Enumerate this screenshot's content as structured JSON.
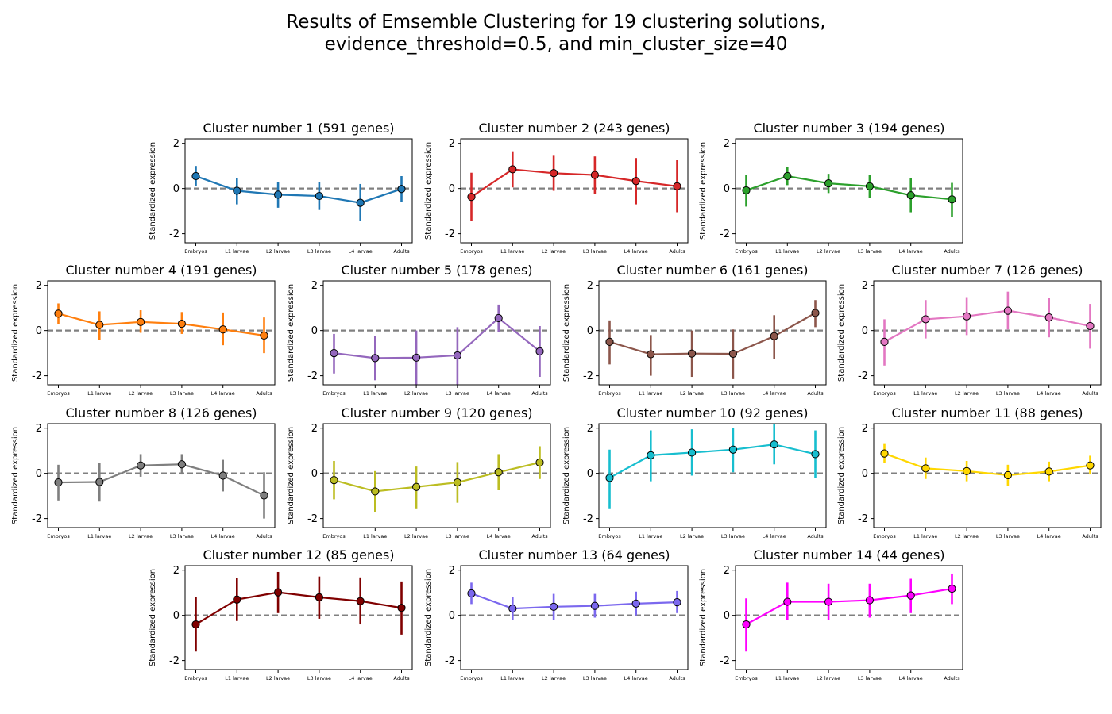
{
  "figure": {
    "title_line1": "Results of Emsemble Clustering for 19 clustering solutions,",
    "title_line2": "evidence_threshold=0.5, and min_cluster_size=40"
  },
  "chart_data": [
    {
      "type": "line",
      "title": "Cluster number 1 (591 genes)",
      "ylabel": "Standardized expression",
      "xlabel": "",
      "categories": [
        "Embryos",
        "L1 larvae",
        "L2 larvae",
        "L3 larvae",
        "L4 larvae",
        "Adults"
      ],
      "ylim": [
        -2.4,
        2.2
      ],
      "yticks": [
        -2,
        0,
        2
      ],
      "color": "#1f77b4",
      "values": [
        0.55,
        -0.1,
        -0.27,
        -0.33,
        -0.63,
        -0.02
      ],
      "err_low": [
        0.1,
        -0.7,
        -0.85,
        -0.95,
        -1.45,
        -0.6
      ],
      "err_high": [
        1.0,
        0.45,
        0.3,
        0.3,
        0.2,
        0.55
      ],
      "reference_line": 0
    },
    {
      "type": "line",
      "title": "Cluster number 2 (243 genes)",
      "ylabel": "Standardized expression",
      "xlabel": "",
      "categories": [
        "Embryos",
        "L1 larvae",
        "L2 larvae",
        "L3 larvae",
        "L4 larvae",
        "Adults"
      ],
      "ylim": [
        -2.4,
        2.2
      ],
      "yticks": [
        -2,
        0,
        2
      ],
      "color": "#d62728",
      "values": [
        -0.37,
        0.85,
        0.68,
        0.6,
        0.33,
        0.1
      ],
      "err_low": [
        -1.45,
        0.05,
        -0.1,
        -0.25,
        -0.7,
        -1.05
      ],
      "err_high": [
        0.7,
        1.65,
        1.45,
        1.42,
        1.35,
        1.25
      ],
      "reference_line": 0
    },
    {
      "type": "line",
      "title": "Cluster number 3 (194 genes)",
      "ylabel": "Standardized expression",
      "xlabel": "",
      "categories": [
        "Embryos",
        "L1 larvae",
        "L2 larvae",
        "L3 larvae",
        "L4 larvae",
        "Adults"
      ],
      "ylim": [
        -2.4,
        2.2
      ],
      "yticks": [
        -2,
        0,
        2
      ],
      "color": "#2ca02c",
      "values": [
        -0.08,
        0.55,
        0.23,
        0.1,
        -0.3,
        -0.48
      ],
      "err_low": [
        -0.8,
        0.15,
        -0.2,
        -0.4,
        -1.05,
        -1.25
      ],
      "err_high": [
        0.6,
        0.95,
        0.65,
        0.6,
        0.45,
        0.25
      ],
      "reference_line": 0
    },
    {
      "type": "line",
      "title": "Cluster number 4 (191 genes)",
      "ylabel": "Standardized expression",
      "xlabel": "",
      "categories": [
        "Embryos",
        "L1 larvae",
        "L2 larvae",
        "L3 larvae",
        "L4 larvae",
        "Adults"
      ],
      "ylim": [
        -2.4,
        2.2
      ],
      "yticks": [
        -2,
        0,
        2
      ],
      "color": "#ff7f0e",
      "values": [
        0.75,
        0.25,
        0.38,
        0.3,
        0.05,
        -0.22
      ],
      "err_low": [
        0.3,
        -0.4,
        -0.1,
        -0.15,
        -0.65,
        -1.0
      ],
      "err_high": [
        1.2,
        0.85,
        0.9,
        0.82,
        0.8,
        0.58
      ],
      "reference_line": 0
    },
    {
      "type": "line",
      "title": "Cluster number 5 (178 genes)",
      "ylabel": "Standardized expression",
      "xlabel": "",
      "categories": [
        "Embryos",
        "L1 larvae",
        "L2 larvae",
        "L3 larvae",
        "L4 larvae",
        "Adults"
      ],
      "ylim": [
        -2.4,
        2.2
      ],
      "yticks": [
        -2,
        0,
        2
      ],
      "color": "#9467bd",
      "values": [
        -1.0,
        -1.22,
        -1.2,
        -1.1,
        0.55,
        -0.92
      ],
      "err_low": [
        -1.9,
        -2.2,
        -2.4,
        -2.4,
        -0.05,
        -2.05
      ],
      "err_high": [
        -0.15,
        -0.25,
        0.0,
        0.15,
        1.15,
        0.2
      ],
      "reference_line": 0
    },
    {
      "type": "line",
      "title": "Cluster number 6 (161 genes)",
      "ylabel": "Standardized expression",
      "xlabel": "",
      "categories": [
        "Embryos",
        "L1 larvae",
        "L2 larvae",
        "L3 larvae",
        "L4 larvae",
        "Adults"
      ],
      "ylim": [
        -2.4,
        2.2
      ],
      "yticks": [
        -2,
        0,
        2
      ],
      "color": "#8c564b",
      "values": [
        -0.5,
        -1.05,
        -1.02,
        -1.03,
        -0.25,
        0.78
      ],
      "err_low": [
        -1.5,
        -2.0,
        -2.05,
        -2.15,
        -1.25,
        0.15
      ],
      "err_high": [
        0.45,
        -0.2,
        0.0,
        0.05,
        0.68,
        1.35
      ],
      "reference_line": 0
    },
    {
      "type": "line",
      "title": "Cluster number 7 (126 genes)",
      "ylabel": "Standardized expression",
      "xlabel": "",
      "categories": [
        "Embryos",
        "L1 larvae",
        "L2 larvae",
        "L3 larvae",
        "L4 larvae",
        "Adults"
      ],
      "ylim": [
        -2.4,
        2.2
      ],
      "yticks": [
        -2,
        0,
        2
      ],
      "color": "#e377c2",
      "values": [
        -0.5,
        0.5,
        0.63,
        0.88,
        0.58,
        0.2
      ],
      "err_low": [
        -1.55,
        -0.35,
        -0.2,
        0.05,
        -0.3,
        -0.8
      ],
      "err_high": [
        0.5,
        1.35,
        1.48,
        1.72,
        1.45,
        1.18
      ],
      "reference_line": 0
    },
    {
      "type": "line",
      "title": "Cluster number 8 (126 genes)",
      "ylabel": "Standardized expression",
      "xlabel": "",
      "categories": [
        "Embryos",
        "L1 larvae",
        "L2 larvae",
        "L3 larvae",
        "L4 larvae",
        "Adults"
      ],
      "ylim": [
        -2.4,
        2.2
      ],
      "yticks": [
        -2,
        0,
        2
      ],
      "color": "#7f7f7f",
      "values": [
        -0.4,
        -0.38,
        0.35,
        0.4,
        -0.1,
        -0.98
      ],
      "err_low": [
        -1.2,
        -1.25,
        -0.15,
        -0.05,
        -0.8,
        -2.0
      ],
      "err_high": [
        0.38,
        0.45,
        0.85,
        0.85,
        0.6,
        0.05
      ],
      "reference_line": 0
    },
    {
      "type": "line",
      "title": "Cluster number 9 (120 genes)",
      "ylabel": "Standardized expression",
      "xlabel": "",
      "categories": [
        "Embryos",
        "L1 larvae",
        "L2 larvae",
        "L3 larvae",
        "L4 larvae",
        "Adults"
      ],
      "ylim": [
        -2.4,
        2.2
      ],
      "yticks": [
        -2,
        0,
        2
      ],
      "color": "#bcbd22",
      "values": [
        -0.3,
        -0.8,
        -0.6,
        -0.4,
        0.05,
        0.48
      ],
      "err_low": [
        -1.15,
        -1.7,
        -1.55,
        -1.3,
        -0.75,
        -0.25
      ],
      "err_high": [
        0.55,
        0.1,
        0.3,
        0.5,
        0.85,
        1.2
      ],
      "reference_line": 0
    },
    {
      "type": "line",
      "title": "Cluster number 10 (92 genes)",
      "ylabel": "Standardized expression",
      "xlabel": "",
      "categories": [
        "Embryos",
        "L1 larvae",
        "L2 larvae",
        "L3 larvae",
        "L4 larvae",
        "Adults"
      ],
      "ylim": [
        -2.4,
        2.2
      ],
      "yticks": [
        -2,
        0,
        2
      ],
      "color": "#17becf",
      "values": [
        -0.2,
        0.8,
        0.92,
        1.05,
        1.28,
        0.85
      ],
      "err_low": [
        -1.55,
        -0.35,
        -0.1,
        0.05,
        0.4,
        -0.2
      ],
      "err_high": [
        1.05,
        1.9,
        1.95,
        2.0,
        2.2,
        1.9
      ],
      "reference_line": 0
    },
    {
      "type": "line",
      "title": "Cluster number 11 (88 genes)",
      "ylabel": "Standardized expression",
      "xlabel": "",
      "categories": [
        "Embryos",
        "L1 larvae",
        "L2 larvae",
        "L3 larvae",
        "L4 larvae",
        "Adults"
      ],
      "ylim": [
        -2.4,
        2.2
      ],
      "yticks": [
        -2,
        0,
        2
      ],
      "color": "#ffd700",
      "values": [
        0.88,
        0.22,
        0.1,
        -0.08,
        0.08,
        0.35
      ],
      "err_low": [
        0.45,
        -0.25,
        -0.35,
        -0.55,
        -0.35,
        -0.05
      ],
      "err_high": [
        1.3,
        0.7,
        0.55,
        0.38,
        0.52,
        0.78
      ],
      "reference_line": 0
    },
    {
      "type": "line",
      "title": "Cluster number 12 (85 genes)",
      "ylabel": "Standardized expression",
      "xlabel": "",
      "categories": [
        "Embryos",
        "L1 larvae",
        "L2 larvae",
        "L3 larvae",
        "L4 larvae",
        "Adults"
      ],
      "ylim": [
        -2.4,
        2.2
      ],
      "yticks": [
        -2,
        0,
        2
      ],
      "color": "#800000",
      "values": [
        -0.4,
        0.7,
        1.02,
        0.8,
        0.63,
        0.33
      ],
      "err_low": [
        -1.6,
        -0.25,
        0.1,
        -0.15,
        -0.4,
        -0.85
      ],
      "err_high": [
        0.8,
        1.65,
        1.92,
        1.72,
        1.68,
        1.5
      ],
      "reference_line": 0
    },
    {
      "type": "line",
      "title": "Cluster number 13 (64 genes)",
      "ylabel": "Standardized expression",
      "xlabel": "",
      "categories": [
        "Embryos",
        "L1 larvae",
        "L2 larvae",
        "L3 larvae",
        "L4 larvae",
        "Adults"
      ],
      "ylim": [
        -2.4,
        2.2
      ],
      "yticks": [
        -2,
        0,
        2
      ],
      "color": "#7b68ee",
      "values": [
        0.97,
        0.3,
        0.38,
        0.42,
        0.52,
        0.58
      ],
      "err_low": [
        0.5,
        -0.2,
        -0.2,
        -0.1,
        0.0,
        0.1
      ],
      "err_high": [
        1.45,
        0.8,
        0.95,
        0.95,
        1.05,
        1.08
      ],
      "reference_line": 0
    },
    {
      "type": "line",
      "title": "Cluster number 14 (44 genes)",
      "ylabel": "Standardized expression",
      "xlabel": "",
      "categories": [
        "Embryos",
        "L1 larvae",
        "L2 larvae",
        "L3 larvae",
        "L4 larvae",
        "Adults"
      ],
      "ylim": [
        -2.4,
        2.2
      ],
      "yticks": [
        -2,
        0,
        2
      ],
      "color": "#ff00ff",
      "values": [
        -0.4,
        0.6,
        0.6,
        0.67,
        0.88,
        1.18
      ],
      "err_low": [
        -1.6,
        -0.2,
        -0.2,
        -0.1,
        0.1,
        0.5
      ],
      "err_high": [
        0.75,
        1.45,
        1.4,
        1.4,
        1.62,
        1.85
      ],
      "reference_line": 0
    }
  ]
}
